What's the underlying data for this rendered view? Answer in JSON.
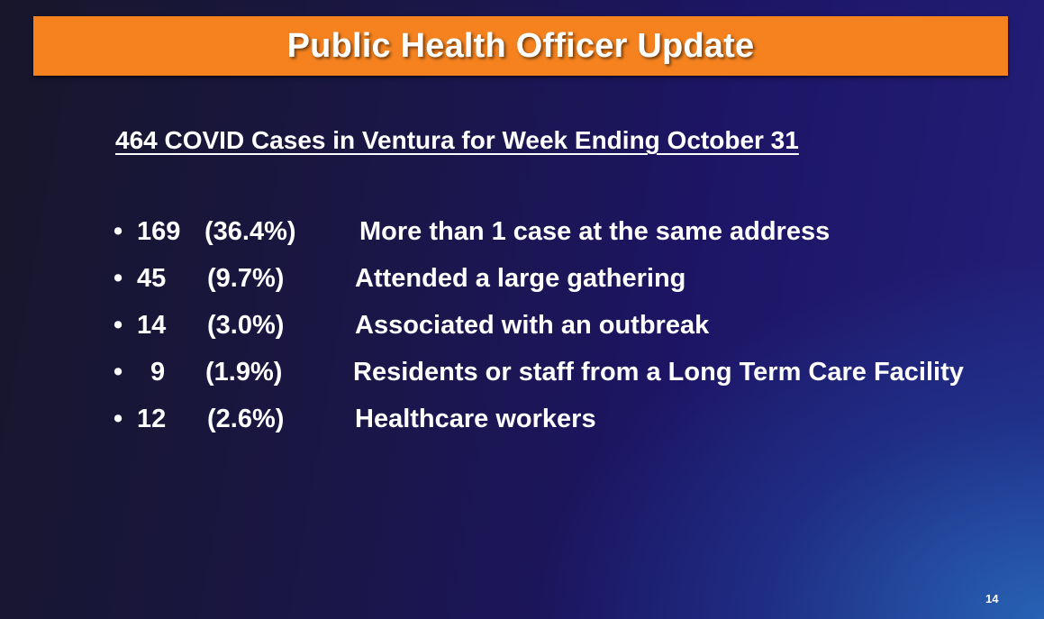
{
  "slide": {
    "title": "Public Health Officer Update",
    "subtitle": "464 COVID Cases in Ventura for Week Ending October 31",
    "bullet_glyph": "•",
    "stats": [
      {
        "count": "169",
        "percent": "(36.4%)",
        "description": "More than 1 case at the same address"
      },
      {
        "count": "45",
        "percent": "(9.7%)",
        "description": "Attended a large gathering"
      },
      {
        "count": "14",
        "percent": "(3.0%)",
        "description": "Associated with an outbreak"
      },
      {
        "count": "9",
        "percent": "(1.9%)",
        "description": "Residents or staff from a Long Term Care Facility"
      },
      {
        "count": "12",
        "percent": "(2.6%)",
        "description": "Healthcare workers"
      }
    ],
    "page_number": "14"
  },
  "colors": {
    "title_bar": "#f5821f",
    "text": "#ffffff",
    "background_dark": "#17162a",
    "background_accent": "#286ebe"
  }
}
